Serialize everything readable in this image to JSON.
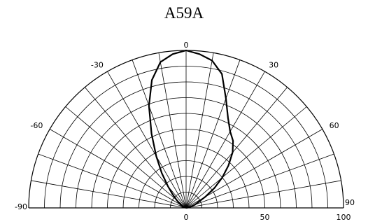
{
  "chart_data": {
    "type": "polar",
    "title": "A59A",
    "angle_ticks": [
      {
        "angle": -90,
        "label": "-90"
      },
      {
        "angle": -60,
        "label": "-60"
      },
      {
        "angle": -30,
        "label": "-30"
      },
      {
        "angle": 0,
        "label": "0"
      },
      {
        "angle": 30,
        "label": "30"
      },
      {
        "angle": 60,
        "label": "60"
      },
      {
        "angle": 90,
        "label": "90"
      }
    ],
    "radial_ticks": [
      {
        "value": 0,
        "label": "0"
      },
      {
        "value": 50,
        "label": "50"
      },
      {
        "value": 100,
        "label": "100"
      }
    ],
    "radial_range": [
      0,
      100
    ],
    "angle_range": [
      -90,
      90
    ],
    "radial_grid_step": 10,
    "angular_grid_step": 10,
    "grid": true,
    "series": [
      {
        "color": "#000000",
        "angles": [
          -90,
          -80,
          -70,
          -60,
          -50,
          -45,
          -40,
          -35,
          -30,
          -25,
          -20,
          -15,
          -10,
          -5,
          0,
          5,
          10,
          15,
          20,
          25,
          30,
          35,
          40,
          45,
          50,
          55,
          60,
          70,
          80,
          90
        ],
        "values": [
          0,
          0,
          2,
          4,
          8,
          12,
          18,
          27,
          38,
          52,
          69,
          84,
          94,
          98,
          100,
          98,
          95,
          88,
          74,
          63,
          56,
          52,
          46,
          38,
          30,
          22,
          14,
          6,
          2,
          0
        ]
      }
    ]
  }
}
